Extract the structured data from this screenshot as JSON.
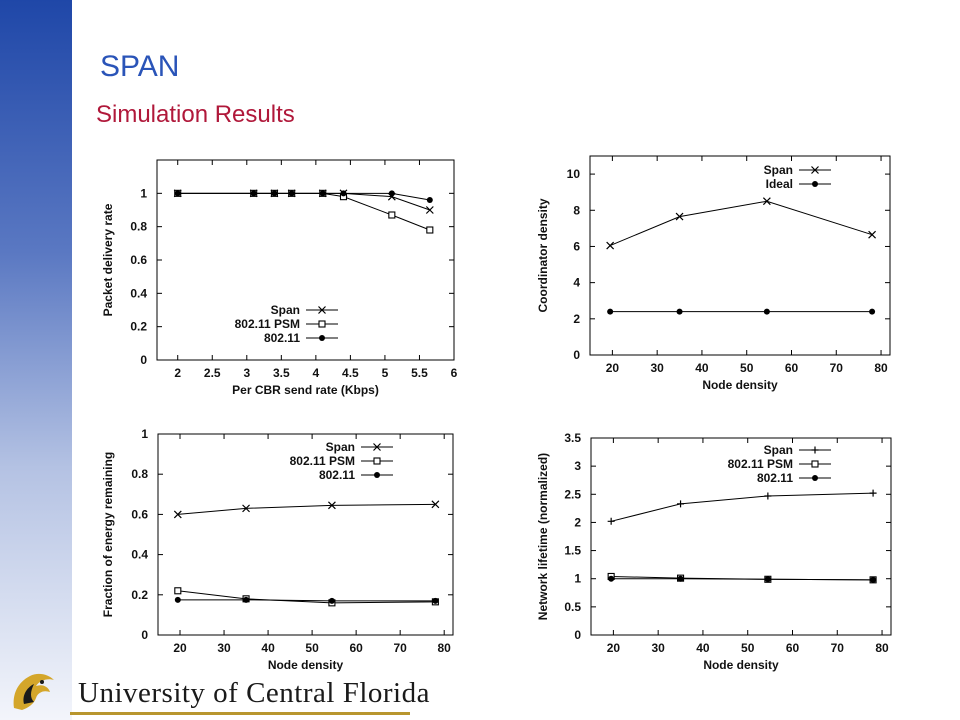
{
  "slide": {
    "title": "SPAN",
    "subtitle": "Simulation Results",
    "footer_name": "University of Central Florida"
  },
  "colors": {
    "sidebar": "#2a54b8",
    "title": "#2a54b8",
    "subtitle": "#b0183a"
  },
  "chart_data": [
    {
      "type": "line",
      "xlabel": "Per CBR send rate (Kbps)",
      "ylabel": "Packet delivery rate",
      "xlim": [
        1.7,
        6
      ],
      "ylim": [
        0,
        1.2
      ],
      "xticks": [
        "2",
        "2.5",
        "3",
        "3.5",
        "4",
        "4.5",
        "5",
        "5.5",
        "6"
      ],
      "yticks": [
        "0",
        "0.2",
        "0.4",
        "0.6",
        "0.8",
        "1"
      ],
      "legend": "bottom-left",
      "series": [
        {
          "name": "Span",
          "marker": "x",
          "x": [
            2,
            3.1,
            3.4,
            3.65,
            4.1,
            4.4,
            5.1,
            5.65
          ],
          "y": [
            1,
            1,
            1,
            1,
            1,
            1,
            0.98,
            0.9
          ]
        },
        {
          "name": "802.11 PSM",
          "marker": "square",
          "x": [
            2,
            3.1,
            3.4,
            3.65,
            4.1,
            4.4,
            5.1,
            5.65
          ],
          "y": [
            1,
            1,
            1,
            1,
            1,
            0.98,
            0.87,
            0.78
          ]
        },
        {
          "name": "802.11",
          "marker": "dot",
          "x": [
            2,
            3.1,
            3.4,
            3.65,
            4.1,
            4.4,
            5.1,
            5.65
          ],
          "y": [
            1,
            1,
            1,
            1,
            1,
            1,
            1,
            0.96
          ]
        }
      ]
    },
    {
      "type": "line",
      "xlabel": "Node density",
      "ylabel": "Coordinator density",
      "xlim": [
        15,
        82
      ],
      "ylim": [
        0,
        11
      ],
      "xticks": [
        "20",
        "30",
        "40",
        "50",
        "60",
        "70",
        "80"
      ],
      "yticks": [
        "0",
        "2",
        "4",
        "6",
        "8",
        "10"
      ],
      "legend": "top-right",
      "series": [
        {
          "name": "Span",
          "marker": "x",
          "x": [
            19.5,
            35,
            54.5,
            78
          ],
          "y": [
            6.05,
            7.65,
            8.5,
            6.65
          ]
        },
        {
          "name": "Ideal",
          "marker": "dot",
          "x": [
            19.5,
            35,
            54.5,
            78
          ],
          "y": [
            2.4,
            2.4,
            2.4,
            2.4
          ]
        }
      ]
    },
    {
      "type": "line",
      "xlabel": "Node density",
      "ylabel": "Fraction of energy remaining",
      "xlim": [
        15,
        82
      ],
      "ylim": [
        0,
        1
      ],
      "xticks": [
        "20",
        "30",
        "40",
        "50",
        "60",
        "70",
        "80"
      ],
      "yticks": [
        "0",
        "0.2",
        "0.4",
        "0.6",
        "0.8",
        "1"
      ],
      "legend": "top-right",
      "series": [
        {
          "name": "Span",
          "marker": "x",
          "x": [
            19.5,
            35,
            54.5,
            78
          ],
          "y": [
            0.6,
            0.63,
            0.645,
            0.65
          ]
        },
        {
          "name": "802.11 PSM",
          "marker": "square",
          "x": [
            19.5,
            35,
            54.5,
            78
          ],
          "y": [
            0.22,
            0.18,
            0.16,
            0.165
          ]
        },
        {
          "name": "802.11",
          "marker": "dot",
          "x": [
            19.5,
            35,
            54.5,
            78
          ],
          "y": [
            0.175,
            0.175,
            0.17,
            0.17
          ]
        }
      ]
    },
    {
      "type": "line",
      "xlabel": "Node density",
      "ylabel": "Network lifetime (normalized)",
      "xlim": [
        15,
        82
      ],
      "ylim": [
        0,
        3.5
      ],
      "xticks": [
        "20",
        "30",
        "40",
        "50",
        "60",
        "70",
        "80"
      ],
      "yticks": [
        "0",
        "0.5",
        "1",
        "1.5",
        "2",
        "2.5",
        "3",
        "3.5"
      ],
      "legend": "top-right",
      "series": [
        {
          "name": "Span",
          "marker": "plus",
          "x": [
            19.5,
            35,
            54.5,
            78
          ],
          "y": [
            2.02,
            2.33,
            2.47,
            2.52
          ]
        },
        {
          "name": "802.11 PSM",
          "marker": "square",
          "x": [
            19.5,
            35,
            54.5,
            78
          ],
          "y": [
            1.04,
            1.01,
            0.99,
            0.98
          ]
        },
        {
          "name": "802.11",
          "marker": "dot",
          "x": [
            19.5,
            35,
            54.5,
            78
          ],
          "y": [
            1,
            1,
            0.99,
            0.98
          ]
        }
      ]
    }
  ]
}
